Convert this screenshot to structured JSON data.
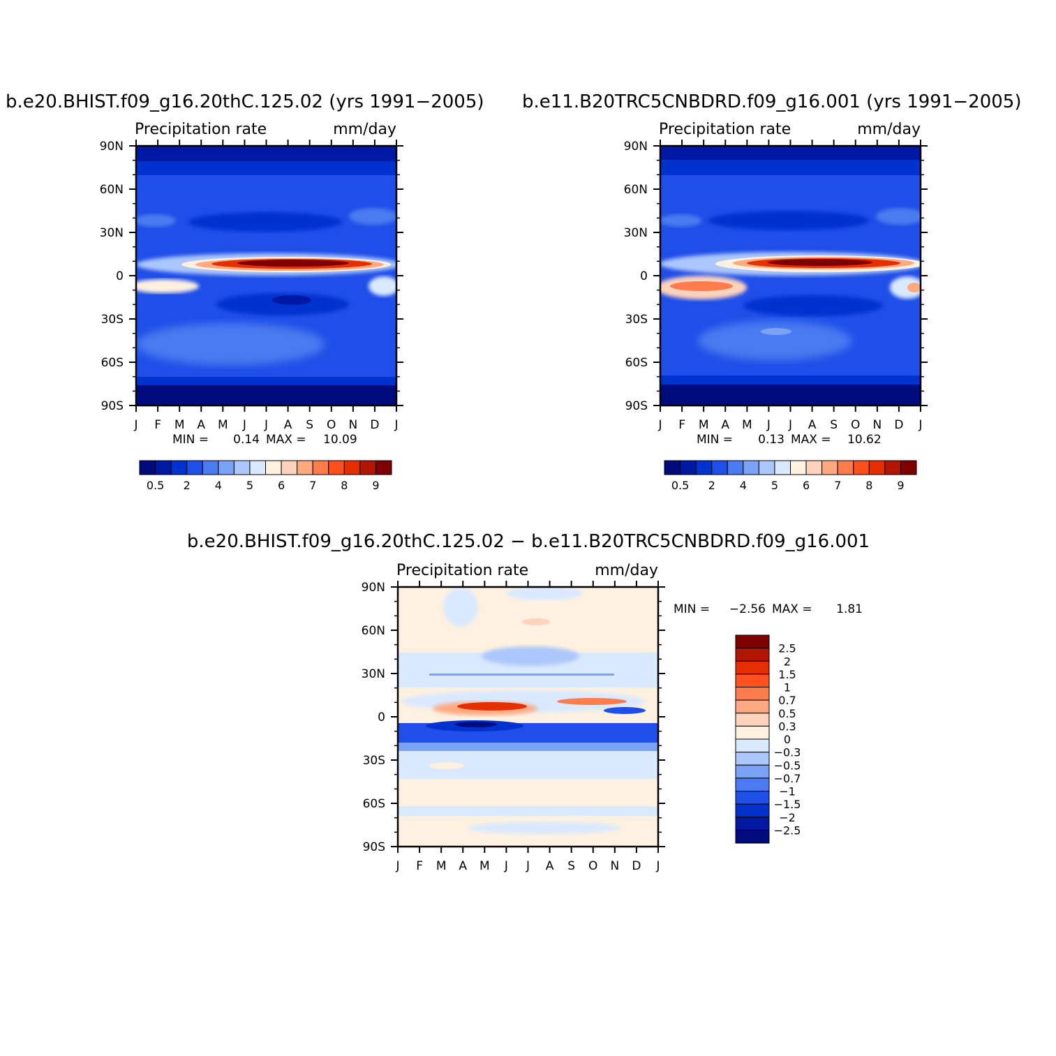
{
  "chart_data": [
    {
      "id": "left",
      "type": "heatmap",
      "title": "b.e20.BHIST.f09_g16.20thC.125.02 (yrs 1991−2005)",
      "subtitle_left": "Precipitation rate",
      "subtitle_right": "mm/day",
      "x_ticks": [
        "J",
        "F",
        "M",
        "A",
        "M",
        "J",
        "J",
        "A",
        "S",
        "O",
        "N",
        "D",
        "J"
      ],
      "y_ticks": [
        "90N",
        "60N",
        "30N",
        "0",
        "30S",
        "60S",
        "90S"
      ],
      "min_label": "MIN =",
      "min_value": "0.14",
      "max_label": "MAX =",
      "max_value": "10.09",
      "colorbar_labels": [
        "0.5",
        "2",
        "4",
        "5",
        "6",
        "7",
        "8",
        "9"
      ],
      "colors": [
        "#000c7e",
        "#0019a5",
        "#0032d0",
        "#1f4ee8",
        "#4a7bf0",
        "#7aa2f5",
        "#acc7fb",
        "#d9e9ff",
        "#fff1df",
        "#ffd2bb",
        "#ffa981",
        "#ff7d4d",
        "#ff4f1d",
        "#e52f00",
        "#b31600",
        "#7f0000"
      ]
    },
    {
      "id": "right",
      "type": "heatmap",
      "title": "b.e11.B20TRC5CNBDRD.f09_g16.001 (yrs 1991−2005)",
      "subtitle_left": "Precipitation rate",
      "subtitle_right": "mm/day",
      "x_ticks": [
        "J",
        "F",
        "M",
        "A",
        "M",
        "J",
        "J",
        "A",
        "S",
        "O",
        "N",
        "D",
        "J"
      ],
      "y_ticks": [
        "90N",
        "60N",
        "30N",
        "0",
        "30S",
        "60S",
        "90S"
      ],
      "min_label": "MIN =",
      "min_value": "0.13",
      "max_label": "MAX =",
      "max_value": "10.62",
      "colorbar_labels": [
        "0.5",
        "2",
        "4",
        "5",
        "6",
        "7",
        "8",
        "9"
      ],
      "colors": [
        "#000c7e",
        "#0019a5",
        "#0032d0",
        "#1f4ee8",
        "#4a7bf0",
        "#7aa2f5",
        "#acc7fb",
        "#d9e9ff",
        "#fff1df",
        "#ffd2bb",
        "#ffa981",
        "#ff7d4d",
        "#ff4f1d",
        "#e52f00",
        "#b31600",
        "#7f0000"
      ]
    },
    {
      "id": "diff",
      "type": "heatmap",
      "title": "b.e20.BHIST.f09_g16.20thC.125.02 − b.e11.B20TRC5CNBDRD.f09_g16.001",
      "subtitle_left": "Precipitation rate",
      "subtitle_right": "mm/day",
      "x_ticks": [
        "J",
        "F",
        "M",
        "A",
        "M",
        "J",
        "J",
        "A",
        "S",
        "O",
        "N",
        "D",
        "J"
      ],
      "y_ticks": [
        "90N",
        "60N",
        "30N",
        "0",
        "30S",
        "60S",
        "90S"
      ],
      "min_label": "MIN =",
      "min_value": "−2.56",
      "max_label": "MAX =",
      "max_value": "1.81",
      "colorbar_labels": [
        "2.5",
        "2",
        "1.5",
        "1",
        "0.7",
        "0.5",
        "0.3",
        "0",
        "−0.3",
        "−0.5",
        "−0.7",
        "−1",
        "−1.5",
        "−2",
        "−2.5"
      ],
      "colors": [
        "#7f0000",
        "#b31600",
        "#e52f00",
        "#ff4f1d",
        "#ff7d4d",
        "#ffa981",
        "#ffd2bb",
        "#fff1df",
        "#d9e9ff",
        "#acc7fb",
        "#7aa2f5",
        "#4a7bf0",
        "#1f4ee8",
        "#0032d0",
        "#0019a5",
        "#000c7e"
      ]
    }
  ]
}
